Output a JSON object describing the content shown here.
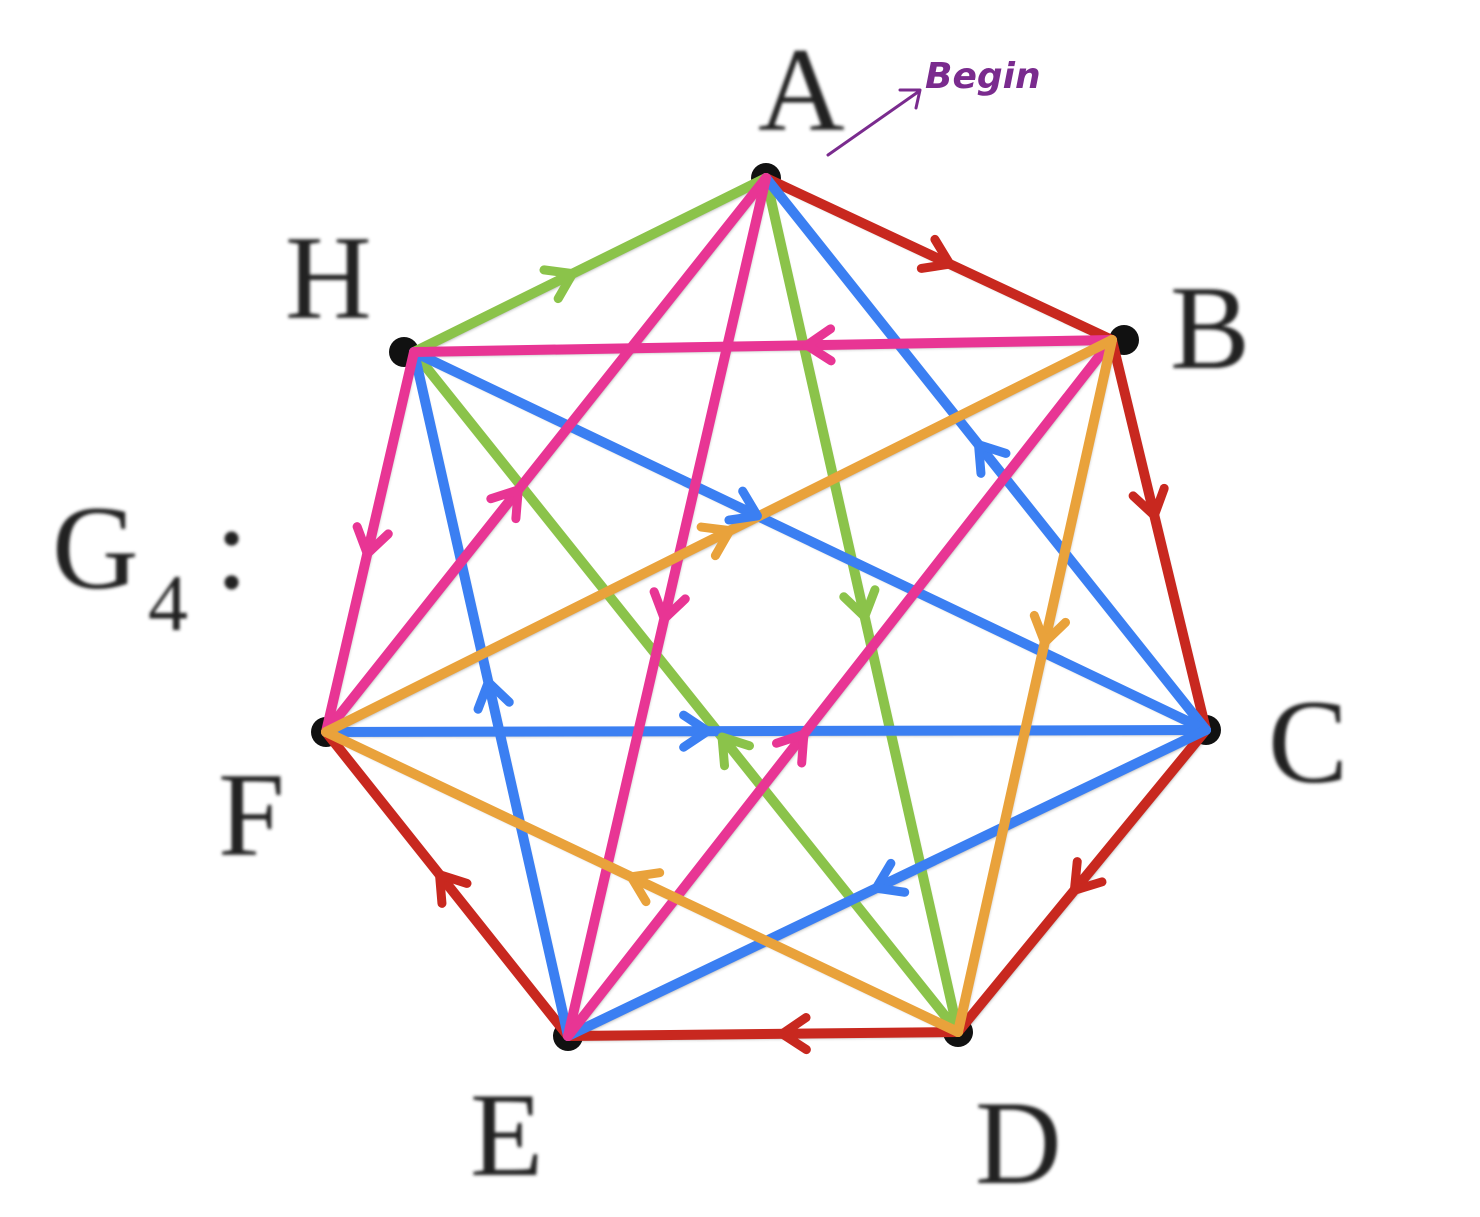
{
  "graph": {
    "name": "G",
    "subscript": "4",
    "suffix": ":",
    "vertices": [
      "A",
      "B",
      "C",
      "D",
      "E",
      "F",
      "H"
    ],
    "note": {
      "text": "Begin",
      "color": "#7a2b8e"
    },
    "colors": {
      "red": "#c8281f",
      "green": "#8bc34a",
      "blue": "#3b7ff2",
      "pink": "#e83594",
      "orange": "#e9a23b",
      "black": "#111111"
    },
    "edges": [
      {
        "from": "A",
        "to": "B",
        "color": "red",
        "arrow": true
      },
      {
        "from": "B",
        "to": "C",
        "color": "red",
        "arrow": true
      },
      {
        "from": "C",
        "to": "D",
        "color": "red",
        "arrow": true
      },
      {
        "from": "D",
        "to": "E",
        "color": "red",
        "arrow": true
      },
      {
        "from": "E",
        "to": "F",
        "color": "red",
        "arrow": true
      },
      {
        "from": "H",
        "to": "A",
        "color": "green",
        "arrow": true
      },
      {
        "from": "A",
        "to": "D",
        "color": "green",
        "arrow": true
      },
      {
        "from": "D",
        "to": "H",
        "color": "green",
        "arrow": true
      },
      {
        "from": "C",
        "to": "A",
        "color": "blue",
        "arrow": true
      },
      {
        "from": "H",
        "to": "C",
        "color": "blue",
        "arrow": true
      },
      {
        "from": "E",
        "to": "H",
        "color": "blue",
        "arrow": true
      },
      {
        "from": "F",
        "to": "C",
        "color": "blue",
        "arrow": true
      },
      {
        "from": "C",
        "to": "E",
        "color": "blue",
        "arrow": true
      },
      {
        "from": "B",
        "to": "H",
        "color": "pink",
        "arrow": true
      },
      {
        "from": "H",
        "to": "F",
        "color": "pink",
        "arrow": true
      },
      {
        "from": "F",
        "to": "A",
        "color": "pink",
        "arrow": true
      },
      {
        "from": "A",
        "to": "E",
        "color": "pink",
        "arrow": true
      },
      {
        "from": "E",
        "to": "B",
        "color": "pink",
        "arrow": true
      },
      {
        "from": "F",
        "to": "B",
        "color": "orange",
        "arrow": true
      },
      {
        "from": "B",
        "to": "D",
        "color": "orange",
        "arrow": true
      },
      {
        "from": "D",
        "to": "F",
        "color": "orange",
        "arrow": true
      }
    ]
  }
}
